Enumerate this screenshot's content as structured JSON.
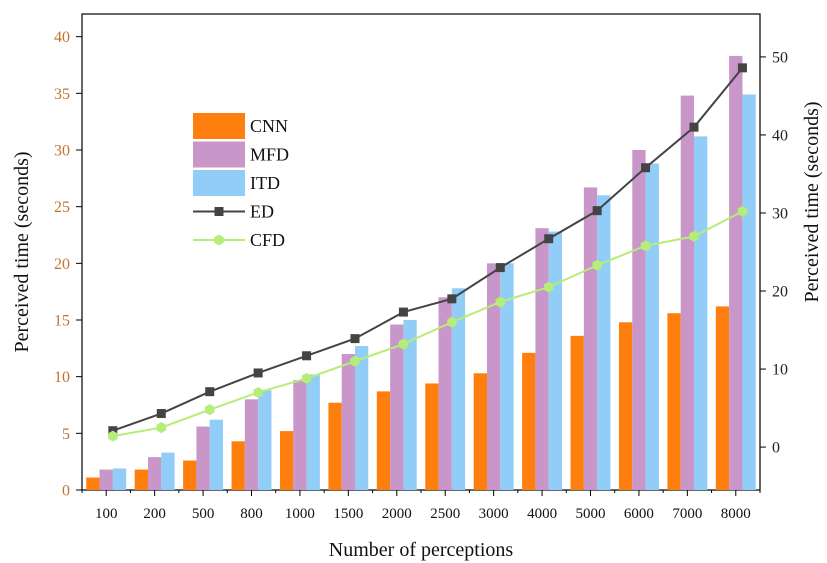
{
  "chart_data": {
    "type": "bar",
    "xlabel": "Number of perceptions",
    "ylabel_left": "Perceived time (seconds)",
    "ylabel_right": "Perceived time (seconds)",
    "categories": [
      "100",
      "200",
      "500",
      "800",
      "1000",
      "1500",
      "2000",
      "2500",
      "3000",
      "4000",
      "5000",
      "6000",
      "7000",
      "8000"
    ],
    "ylim_left": [
      0,
      42
    ],
    "yticks_left": [
      0,
      5,
      10,
      15,
      20,
      25,
      30,
      35,
      40
    ],
    "ylim_right": [
      -5.5,
      55.5
    ],
    "yticks_right": [
      0,
      10,
      20,
      30,
      40,
      50
    ],
    "bar_series": [
      {
        "name": "CNN",
        "color": "#ff7f0e",
        "values": [
          1.1,
          1.8,
          2.6,
          4.3,
          5.2,
          7.7,
          8.7,
          9.4,
          10.3,
          12.1,
          13.6,
          14.8,
          15.6,
          16.2
        ]
      },
      {
        "name": "MFD",
        "color": "#c896c8",
        "values": [
          1.8,
          2.9,
          5.6,
          8.0,
          9.7,
          12.0,
          14.6,
          17.0,
          20.0,
          23.1,
          26.7,
          30.0,
          34.8,
          38.3
        ]
      },
      {
        "name": "ITD",
        "color": "#92cdf8",
        "values": [
          1.9,
          3.3,
          6.2,
          8.8,
          10.2,
          12.7,
          15.0,
          17.8,
          20.0,
          22.8,
          26.0,
          28.8,
          31.2,
          34.9
        ]
      }
    ],
    "line_series": [
      {
        "name": "ED",
        "axis": "right",
        "color": "#444444",
        "marker": "square",
        "values": [
          2.1,
          4.3,
          7.1,
          9.5,
          11.7,
          13.9,
          17.3,
          19.0,
          23.0,
          26.7,
          30.3,
          35.8,
          41.0,
          48.6
        ]
      },
      {
        "name": "CFD",
        "axis": "right",
        "color": "#b6ec78",
        "marker": "hexagon",
        "values": [
          1.4,
          2.5,
          4.8,
          7.0,
          8.8,
          11.0,
          13.2,
          16.0,
          18.6,
          20.5,
          23.3,
          25.8,
          27.0,
          30.2
        ]
      }
    ]
  }
}
